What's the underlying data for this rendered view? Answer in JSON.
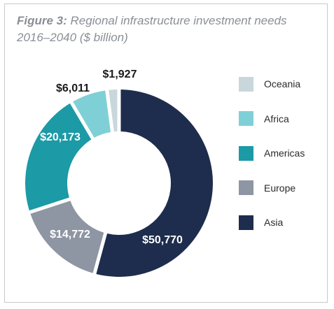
{
  "figure": {
    "label": "Figure 3:",
    "title_line1": "Regional infrastructure investment needs",
    "title_line2": "2016–2040 ($ billion)"
  },
  "chart_data": {
    "type": "pie",
    "donut": true,
    "title": "Figure 3: Regional infrastructure investment needs 2016–2040 ($ billion)",
    "legend_position": "right",
    "slices": [
      {
        "name": "Asia",
        "value": 50770,
        "label": "$50,770",
        "color": "#1e2d4d",
        "label_color": "#ffffff"
      },
      {
        "name": "Europe",
        "value": 14772,
        "label": "$14,772",
        "color": "#8e95a3",
        "label_color": "#ffffff"
      },
      {
        "name": "Americas",
        "value": 20173,
        "label": "$20,173",
        "color": "#1c9aa6",
        "label_color": "#ffffff"
      },
      {
        "name": "Africa",
        "value": 6011,
        "label": "$6,011",
        "color": "#7fd0d6",
        "label_color": "#1a1a1a"
      },
      {
        "name": "Oceania",
        "value": 1927,
        "label": "$1,927",
        "color": "#c9d7dc",
        "label_color": "#1a1a1a"
      }
    ],
    "legend": [
      {
        "name": "Oceania",
        "color": "#c9d7dc"
      },
      {
        "name": "Africa",
        "color": "#7fd0d6"
      },
      {
        "name": "Americas",
        "color": "#1c9aa6"
      },
      {
        "name": "Europe",
        "color": "#8e95a3"
      },
      {
        "name": "Asia",
        "color": "#1e2d4d"
      }
    ]
  }
}
